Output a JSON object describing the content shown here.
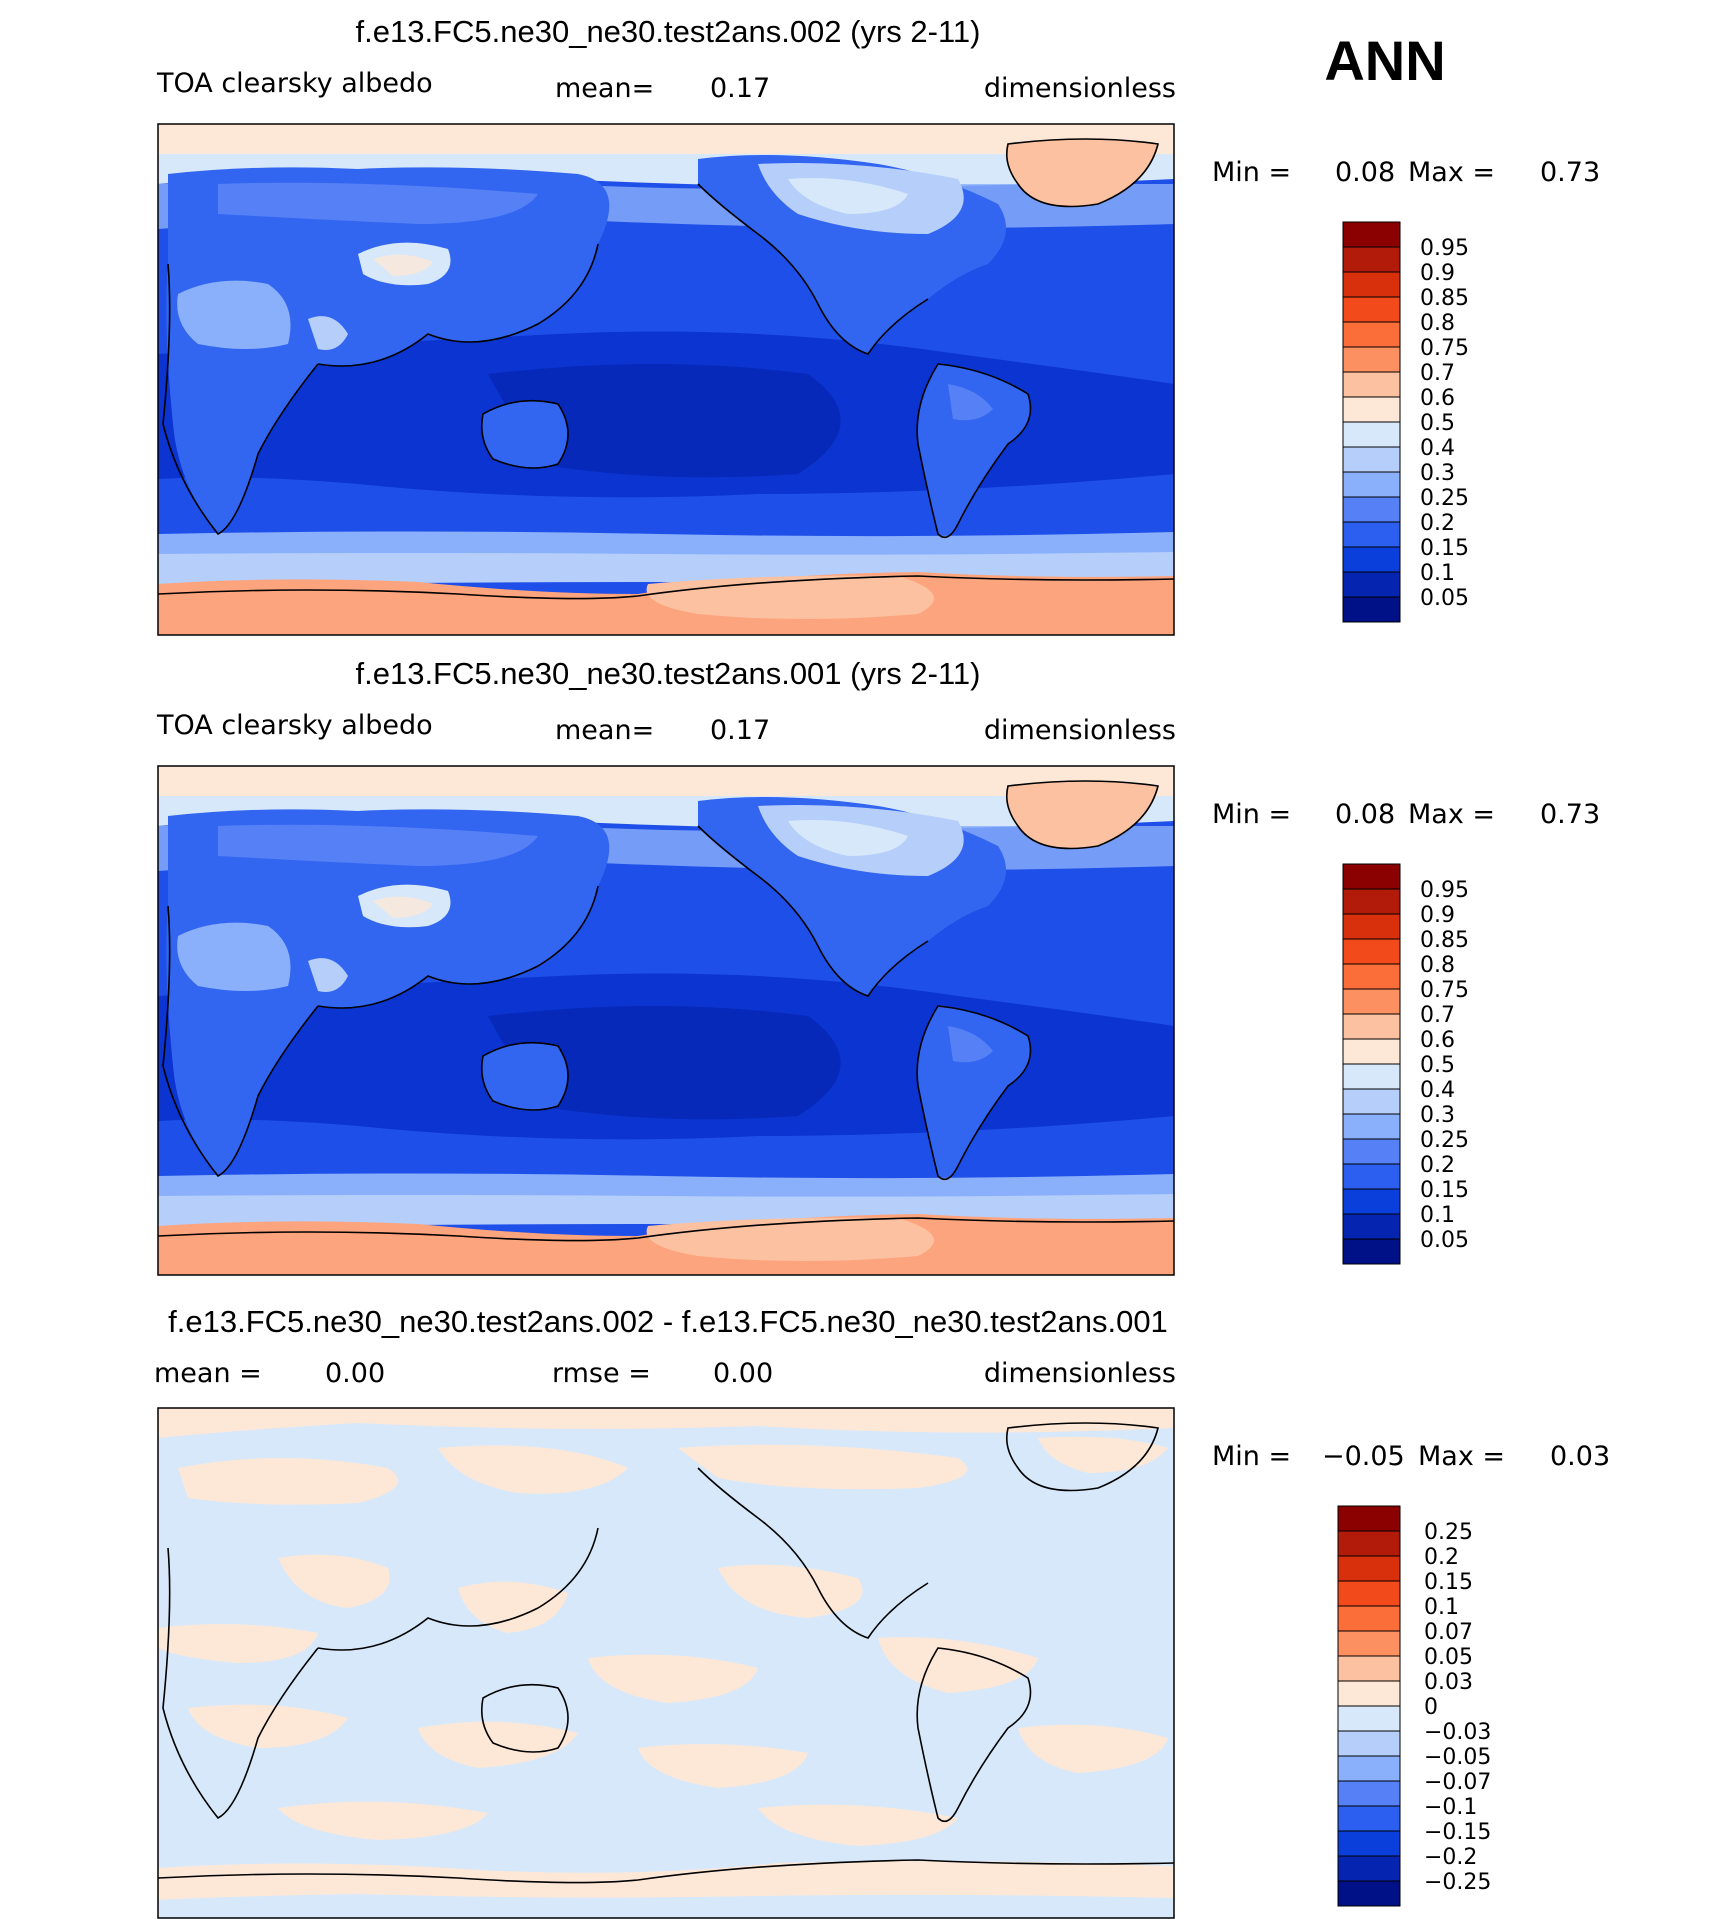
{
  "season_label": "ANN",
  "panels": [
    {
      "id": "test",
      "title": "f.e13.FC5.ne30_ne30.test2ans.002 (yrs 2-11)",
      "variable": "TOA clearsky albedo",
      "stat1_label": "mean=",
      "stat1_value": "0.17",
      "units": "dimensionless",
      "min_label": "Min =",
      "min_value": "0.08",
      "max_label": "Max =",
      "max_value": "0.73",
      "scale": "abs"
    },
    {
      "id": "control",
      "title": "f.e13.FC5.ne30_ne30.test2ans.001 (yrs 2-11)",
      "variable": "TOA clearsky albedo",
      "stat1_label": "mean=",
      "stat1_value": "0.17",
      "units": "dimensionless",
      "min_label": "Min =",
      "min_value": "0.08",
      "max_label": "Max =",
      "max_value": "0.73",
      "scale": "abs"
    },
    {
      "id": "diff",
      "title": "f.e13.FC5.ne30_ne30.test2ans.002 - f.e13.FC5.ne30_ne30.test2ans.001",
      "stat1_label": "mean =",
      "stat1_value": "0.00",
      "stat2_label": "rmse =",
      "stat2_value": "0.00",
      "units": "dimensionless",
      "min_label": "Min =",
      "min_value": "−0.05",
      "max_label": "Max =",
      "max_value": "0.03",
      "scale": "diff"
    }
  ],
  "colorbars": {
    "abs": {
      "levels": [
        "0.95",
        "0.9",
        "0.85",
        "0.8",
        "0.75",
        "0.7",
        "0.6",
        "0.5",
        "0.4",
        "0.3",
        "0.25",
        "0.2",
        "0.15",
        "0.1",
        "0.05"
      ],
      "colors": [
        "#8b0000",
        "#b21a0a",
        "#d8300c",
        "#f24a1a",
        "#fb6e3a",
        "#fd9060",
        "#fcc1a0",
        "#fde8d8",
        "#d7e8fa",
        "#b6cffa",
        "#8bb0fb",
        "#5580f6",
        "#2c5ff0",
        "#0a3fdc",
        "#0525b0",
        "#001087"
      ]
    },
    "diff": {
      "levels": [
        "0.25",
        "0.2",
        "0.15",
        "0.1",
        "0.07",
        "0.05",
        "0.03",
        "0",
        "−0.03",
        "−0.05",
        "−0.07",
        "−0.1",
        "−0.15",
        "−0.2",
        "−0.25"
      ],
      "colors": [
        "#8b0000",
        "#b21a0a",
        "#d8300c",
        "#f24a1a",
        "#fb6e3a",
        "#fd9060",
        "#fcc1a0",
        "#fde8d8",
        "#d7e8fa",
        "#b6cffa",
        "#8bb0fb",
        "#5580f6",
        "#2c5ff0",
        "#0a3fdc",
        "#0525b0",
        "#001087"
      ]
    }
  },
  "field_colors": {
    "land_nh": "#3366f0",
    "ocean_tropics": "#0b34d1",
    "ocean_mid": "#1e4fe8",
    "sea_ice_nh": "#fde8d8",
    "antarctica": "#fca47e",
    "southern_ocean_band": "#b6cffa",
    "greenland": "#fcc1a0",
    "diff_positive": "#fde8d8",
    "diff_negative": "#d7e8fa"
  }
}
